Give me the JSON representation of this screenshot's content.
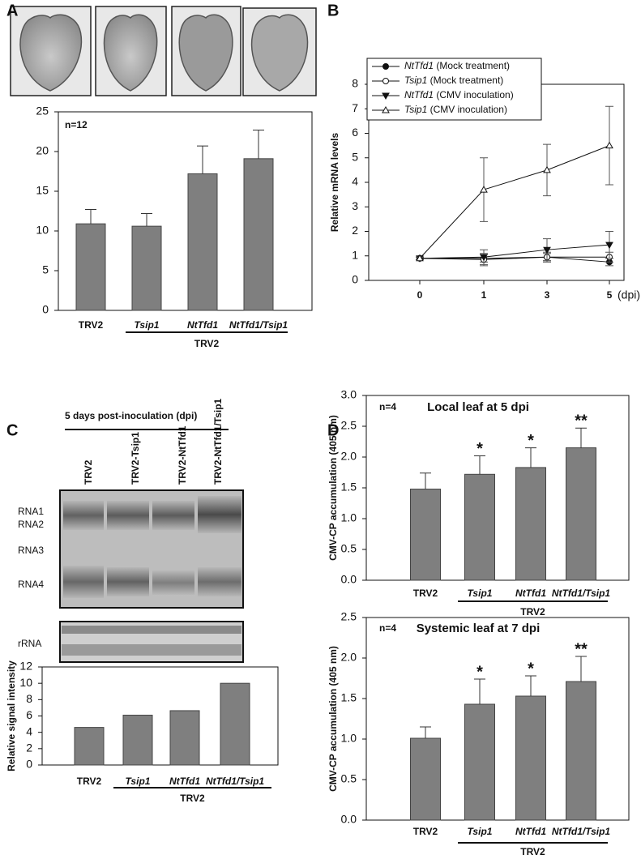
{
  "chart_data": [
    {
      "type": "bar",
      "panel_label": "A",
      "annotation": "n=12",
      "categories": [
        "TRV2",
        "Tsip1",
        "NtTfd1",
        "NtTfd1/Tsip1"
      ],
      "group_label": "TRV2",
      "values": [
        10.9,
        10.6,
        17.2,
        19.1
      ],
      "errors": [
        1.8,
        1.6,
        3.5,
        3.6
      ],
      "color": "#7f7f7f",
      "ylim": [
        0,
        25
      ],
      "yticks": [
        0,
        5,
        10,
        15,
        20,
        25
      ]
    },
    {
      "type": "line",
      "panel_label": "B",
      "y_label": "Relative mRNA levels",
      "categories": [
        "0",
        "1",
        "3",
        "5"
      ],
      "x_unit": "(dpi)",
      "series": [
        {
          "name": "NtTfd1 (Mock treatment)",
          "marker": "circle-filled",
          "color": "#111111",
          "values": [
            0.9,
            0.9,
            0.95,
            0.75
          ],
          "errors": [
            0.05,
            0.15,
            0.15,
            0.15
          ]
        },
        {
          "name": "Tsip1 (Mock treatment)",
          "marker": "circle-open",
          "color": "#111111",
          "values": [
            0.9,
            0.85,
            0.95,
            0.95
          ],
          "errors": [
            0.05,
            0.25,
            0.2,
            0.2
          ]
        },
        {
          "name": "NtTfd1 (CMV inoculation)",
          "marker": "triangle-down-filled",
          "color": "#111111",
          "values": [
            0.9,
            0.95,
            1.25,
            1.45
          ],
          "errors": [
            0.05,
            0.3,
            0.45,
            0.55
          ]
        },
        {
          "name": "Tsip1 (CMV inoculation)",
          "marker": "triangle-open",
          "color": "#111111",
          "values": [
            0.9,
            3.7,
            4.5,
            5.5
          ],
          "errors": [
            0.05,
            1.3,
            1.05,
            1.6
          ]
        }
      ],
      "ylim": [
        0,
        8
      ],
      "yticks": [
        0,
        1,
        2,
        3,
        4,
        5,
        6,
        7,
        8
      ]
    },
    {
      "type": "bar",
      "panel_label": "C",
      "header": "5 days post-inoculation (dpi)",
      "lane_labels": [
        "TRV2",
        "TRV2-Tsip1",
        "TRV2-NtTfd1",
        "TRV2-NtTfd1/Tsip1"
      ],
      "band_labels": [
        "RNA1",
        "RNA2",
        "RNA3",
        "RNA4",
        "rRNA"
      ],
      "y_label": "Relative signal intensity",
      "categories": [
        "TRV2",
        "Tsip1",
        "NtTfd1",
        "NtTfd1/Tsip1"
      ],
      "group_label": "TRV2",
      "values": [
        4.6,
        6.1,
        6.65,
        10.0
      ],
      "color": "#7f7f7f",
      "ylim": [
        0,
        12
      ],
      "yticks": [
        0,
        2,
        4,
        6,
        8,
        10,
        12
      ]
    },
    {
      "type": "bar",
      "panel_label": "D",
      "title": "Local leaf at 5 dpi",
      "annotation": "n=4",
      "y_label": "CMV-CP accumulation (405 nm)",
      "categories": [
        "TRV2",
        "Tsip1",
        "NtTfd1",
        "NtTfd1/Tsip1"
      ],
      "group_label": "TRV2",
      "values": [
        1.48,
        1.72,
        1.83,
        2.15
      ],
      "errors": [
        0.26,
        0.3,
        0.32,
        0.32
      ],
      "significance": [
        null,
        "*",
        "*",
        "**"
      ],
      "color": "#7f7f7f",
      "ylim": [
        0,
        3
      ],
      "yticks": [
        {
          "value": 0,
          "label": "0.0"
        },
        {
          "value": 0.5,
          "label": "0.5"
        },
        {
          "value": 1,
          "label": "1.0"
        },
        {
          "value": 1.5,
          "label": "1.5"
        },
        {
          "value": 2,
          "label": "2.0"
        },
        {
          "value": 2.5,
          "label": "2.5"
        },
        {
          "value": 3,
          "label": "3.0"
        }
      ]
    },
    {
      "type": "bar",
      "title": "Systemic leaf at 7 dpi",
      "annotation": "n=4",
      "y_label": "CMV-CP accumulation (405 nm)",
      "categories": [
        "TRV2",
        "Tsip1",
        "NtTfd1",
        "NtTfd1/Tsip1"
      ],
      "group_label": "TRV2",
      "values": [
        1.01,
        1.43,
        1.53,
        1.71
      ],
      "errors": [
        0.14,
        0.31,
        0.25,
        0.31
      ],
      "significance": [
        null,
        "*",
        "*",
        "**"
      ],
      "color": "#7f7f7f",
      "ylim": [
        0,
        2.5
      ],
      "yticks": [
        {
          "value": 0,
          "label": "0.0"
        },
        {
          "value": 0.5,
          "label": "0.5"
        },
        {
          "value": 1,
          "label": "1.0"
        },
        {
          "value": 1.5,
          "label": "1.5"
        },
        {
          "value": 2,
          "label": "2.0"
        },
        {
          "value": 2.5,
          "label": "2.5"
        }
      ]
    }
  ]
}
